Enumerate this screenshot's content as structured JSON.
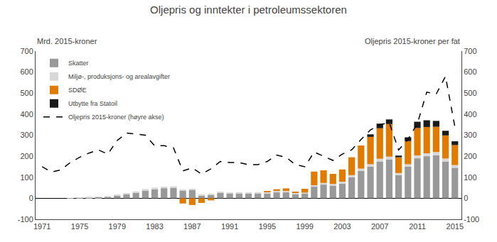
{
  "chart_data": {
    "type": "bar",
    "title": "Oljepris og inntekter i petroleumssektoren",
    "ylabel": "Mrd. 2015-kroner",
    "y2label": "Oljepris 2015-kroner per fat",
    "x": [
      1971,
      1972,
      1973,
      1974,
      1975,
      1976,
      1977,
      1978,
      1979,
      1980,
      1981,
      1982,
      1983,
      1984,
      1985,
      1986,
      1987,
      1988,
      1989,
      1990,
      1991,
      1992,
      1993,
      1994,
      1995,
      1996,
      1997,
      1998,
      1999,
      2000,
      2001,
      2002,
      2003,
      2004,
      2005,
      2006,
      2007,
      2008,
      2009,
      2010,
      2011,
      2012,
      2013,
      2014,
      2015
    ],
    "stacked": true,
    "series": [
      {
        "name": "Skatter",
        "color": "#999999",
        "values": [
          0,
          0,
          0,
          1,
          2,
          4,
          6,
          8,
          12,
          20,
          28,
          38,
          45,
          48,
          50,
          38,
          40,
          12,
          16,
          25,
          22,
          24,
          22,
          24,
          24,
          28,
          28,
          20,
          22,
          55,
          65,
          60,
          70,
          100,
          130,
          150,
          175,
          185,
          110,
          150,
          190,
          200,
          205,
          175,
          145
        ]
      },
      {
        "name": "Miljø-, produksjons- og arealavgifter",
        "color": "#d8d8d8",
        "values": [
          0,
          0,
          0,
          0,
          1,
          1,
          2,
          2,
          3,
          4,
          5,
          6,
          6,
          7,
          7,
          4,
          4,
          3,
          3,
          4,
          4,
          5,
          5,
          5,
          6,
          7,
          7,
          5,
          5,
          7,
          8,
          8,
          9,
          10,
          11,
          12,
          13,
          13,
          10,
          12,
          14,
          14,
          15,
          14,
          13
        ]
      },
      {
        "name": "SDØE",
        "color": "#e07b00",
        "values": [
          0,
          0,
          0,
          0,
          0,
          0,
          0,
          0,
          0,
          0,
          0,
          0,
          0,
          0,
          0,
          -25,
          -32,
          -22,
          -10,
          0,
          0,
          0,
          0,
          0,
          4,
          8,
          12,
          5,
          18,
          65,
          60,
          48,
          58,
          85,
          110,
          130,
          145,
          155,
          75,
          110,
          130,
          125,
          120,
          110,
          95
        ]
      },
      {
        "name": "Utbytte fra Statoil",
        "color": "#1a1a1a",
        "values": [
          0,
          0,
          0,
          0,
          0,
          0,
          0,
          0,
          0,
          0,
          0,
          0,
          0,
          0,
          0,
          0,
          0,
          0,
          0,
          0,
          0,
          0,
          0,
          0,
          0,
          0,
          0,
          0,
          0,
          0,
          0,
          0,
          0,
          0,
          0,
          12,
          22,
          22,
          8,
          18,
          30,
          32,
          28,
          22,
          18
        ]
      },
      {
        "name": "Oljepris 2015-kroner (høyre akse)",
        "type": "line",
        "axis": "y2",
        "color": "#000000",
        "line_style": "dashed",
        "values": [
          150,
          125,
          135,
          170,
          195,
          215,
          230,
          210,
          275,
          310,
          305,
          300,
          250,
          250,
          240,
          130,
          145,
          115,
          140,
          175,
          170,
          170,
          160,
          160,
          175,
          205,
          195,
          160,
          150,
          220,
          200,
          180,
          210,
          230,
          280,
          325,
          350,
          360,
          230,
          280,
          355,
          505,
          495,
          580,
          340
        ]
      }
    ],
    "xlim": [
      1970.3,
      2015.7
    ],
    "xticks": [
      1971,
      1975,
      1979,
      1983,
      1987,
      1991,
      1995,
      1999,
      2003,
      2007,
      2011,
      2015
    ],
    "ylim": [
      -100,
      700
    ],
    "yticks": [
      -100,
      0,
      100,
      200,
      300,
      400,
      500,
      600,
      700
    ],
    "y2lim": [
      -100,
      700
    ],
    "y2ticks": [
      -100,
      0,
      100,
      200,
      300,
      400,
      500,
      600,
      700
    ],
    "legend": "upper left",
    "grid": false
  }
}
